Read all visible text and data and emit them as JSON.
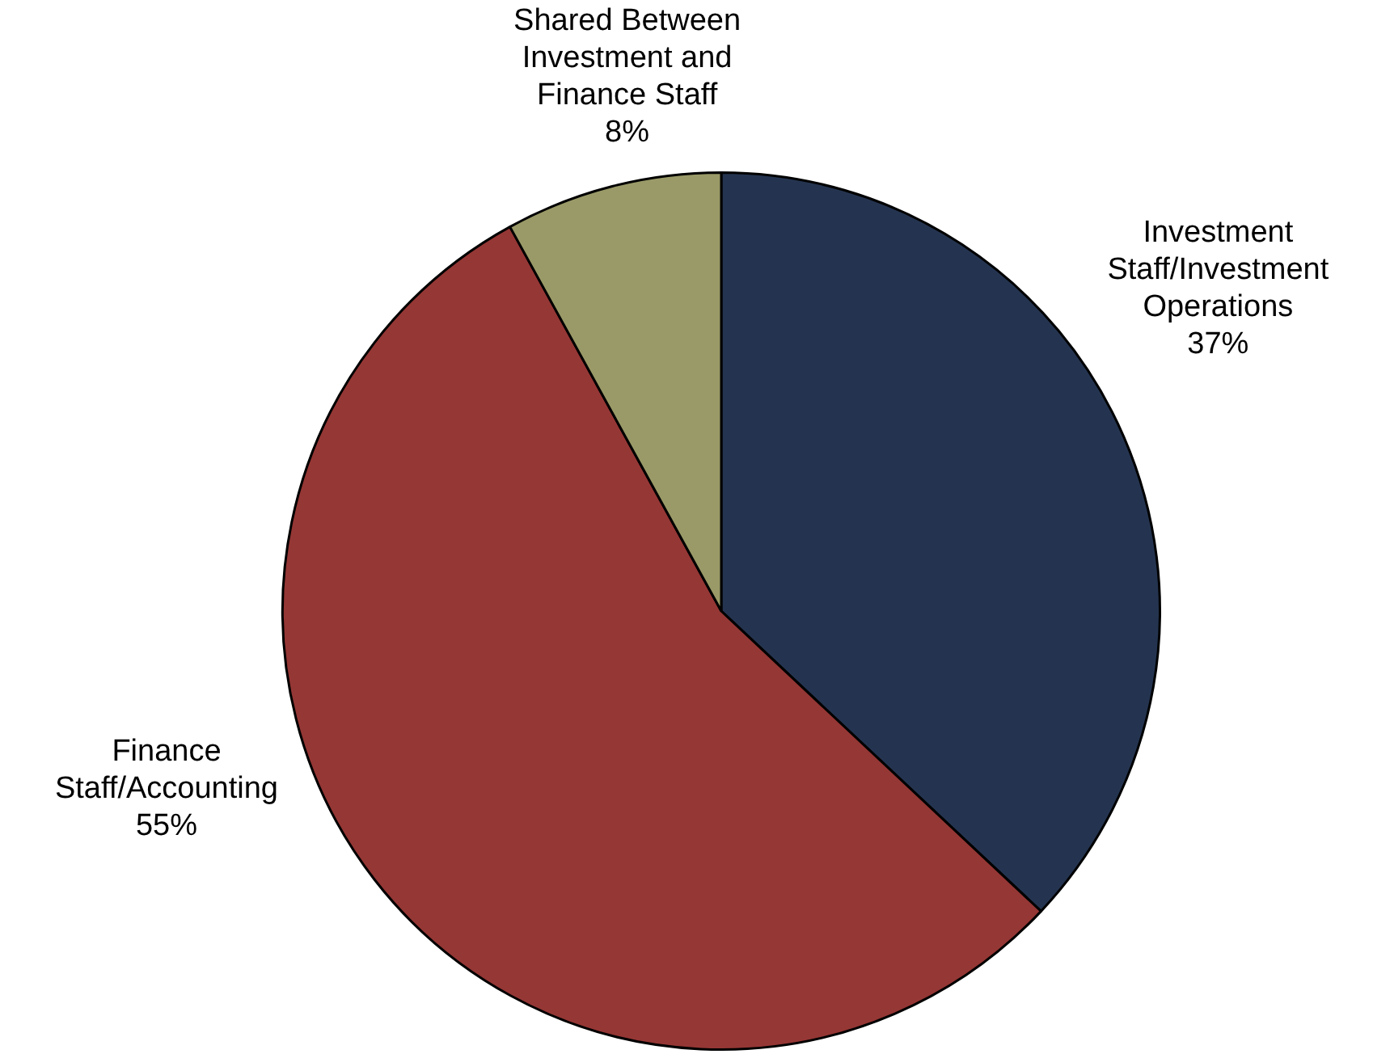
{
  "chart_data": {
    "type": "pie",
    "categories": [
      "Investment Staff/Investment Operations",
      "Finance Staff/Accounting",
      "Shared Between Investment and Finance Staff"
    ],
    "values": [
      37,
      55,
      8
    ],
    "colors": [
      "#243450",
      "#953735",
      "#9a9a68"
    ],
    "value_labels": [
      "37%",
      "55%",
      "8%"
    ],
    "legend": false
  }
}
